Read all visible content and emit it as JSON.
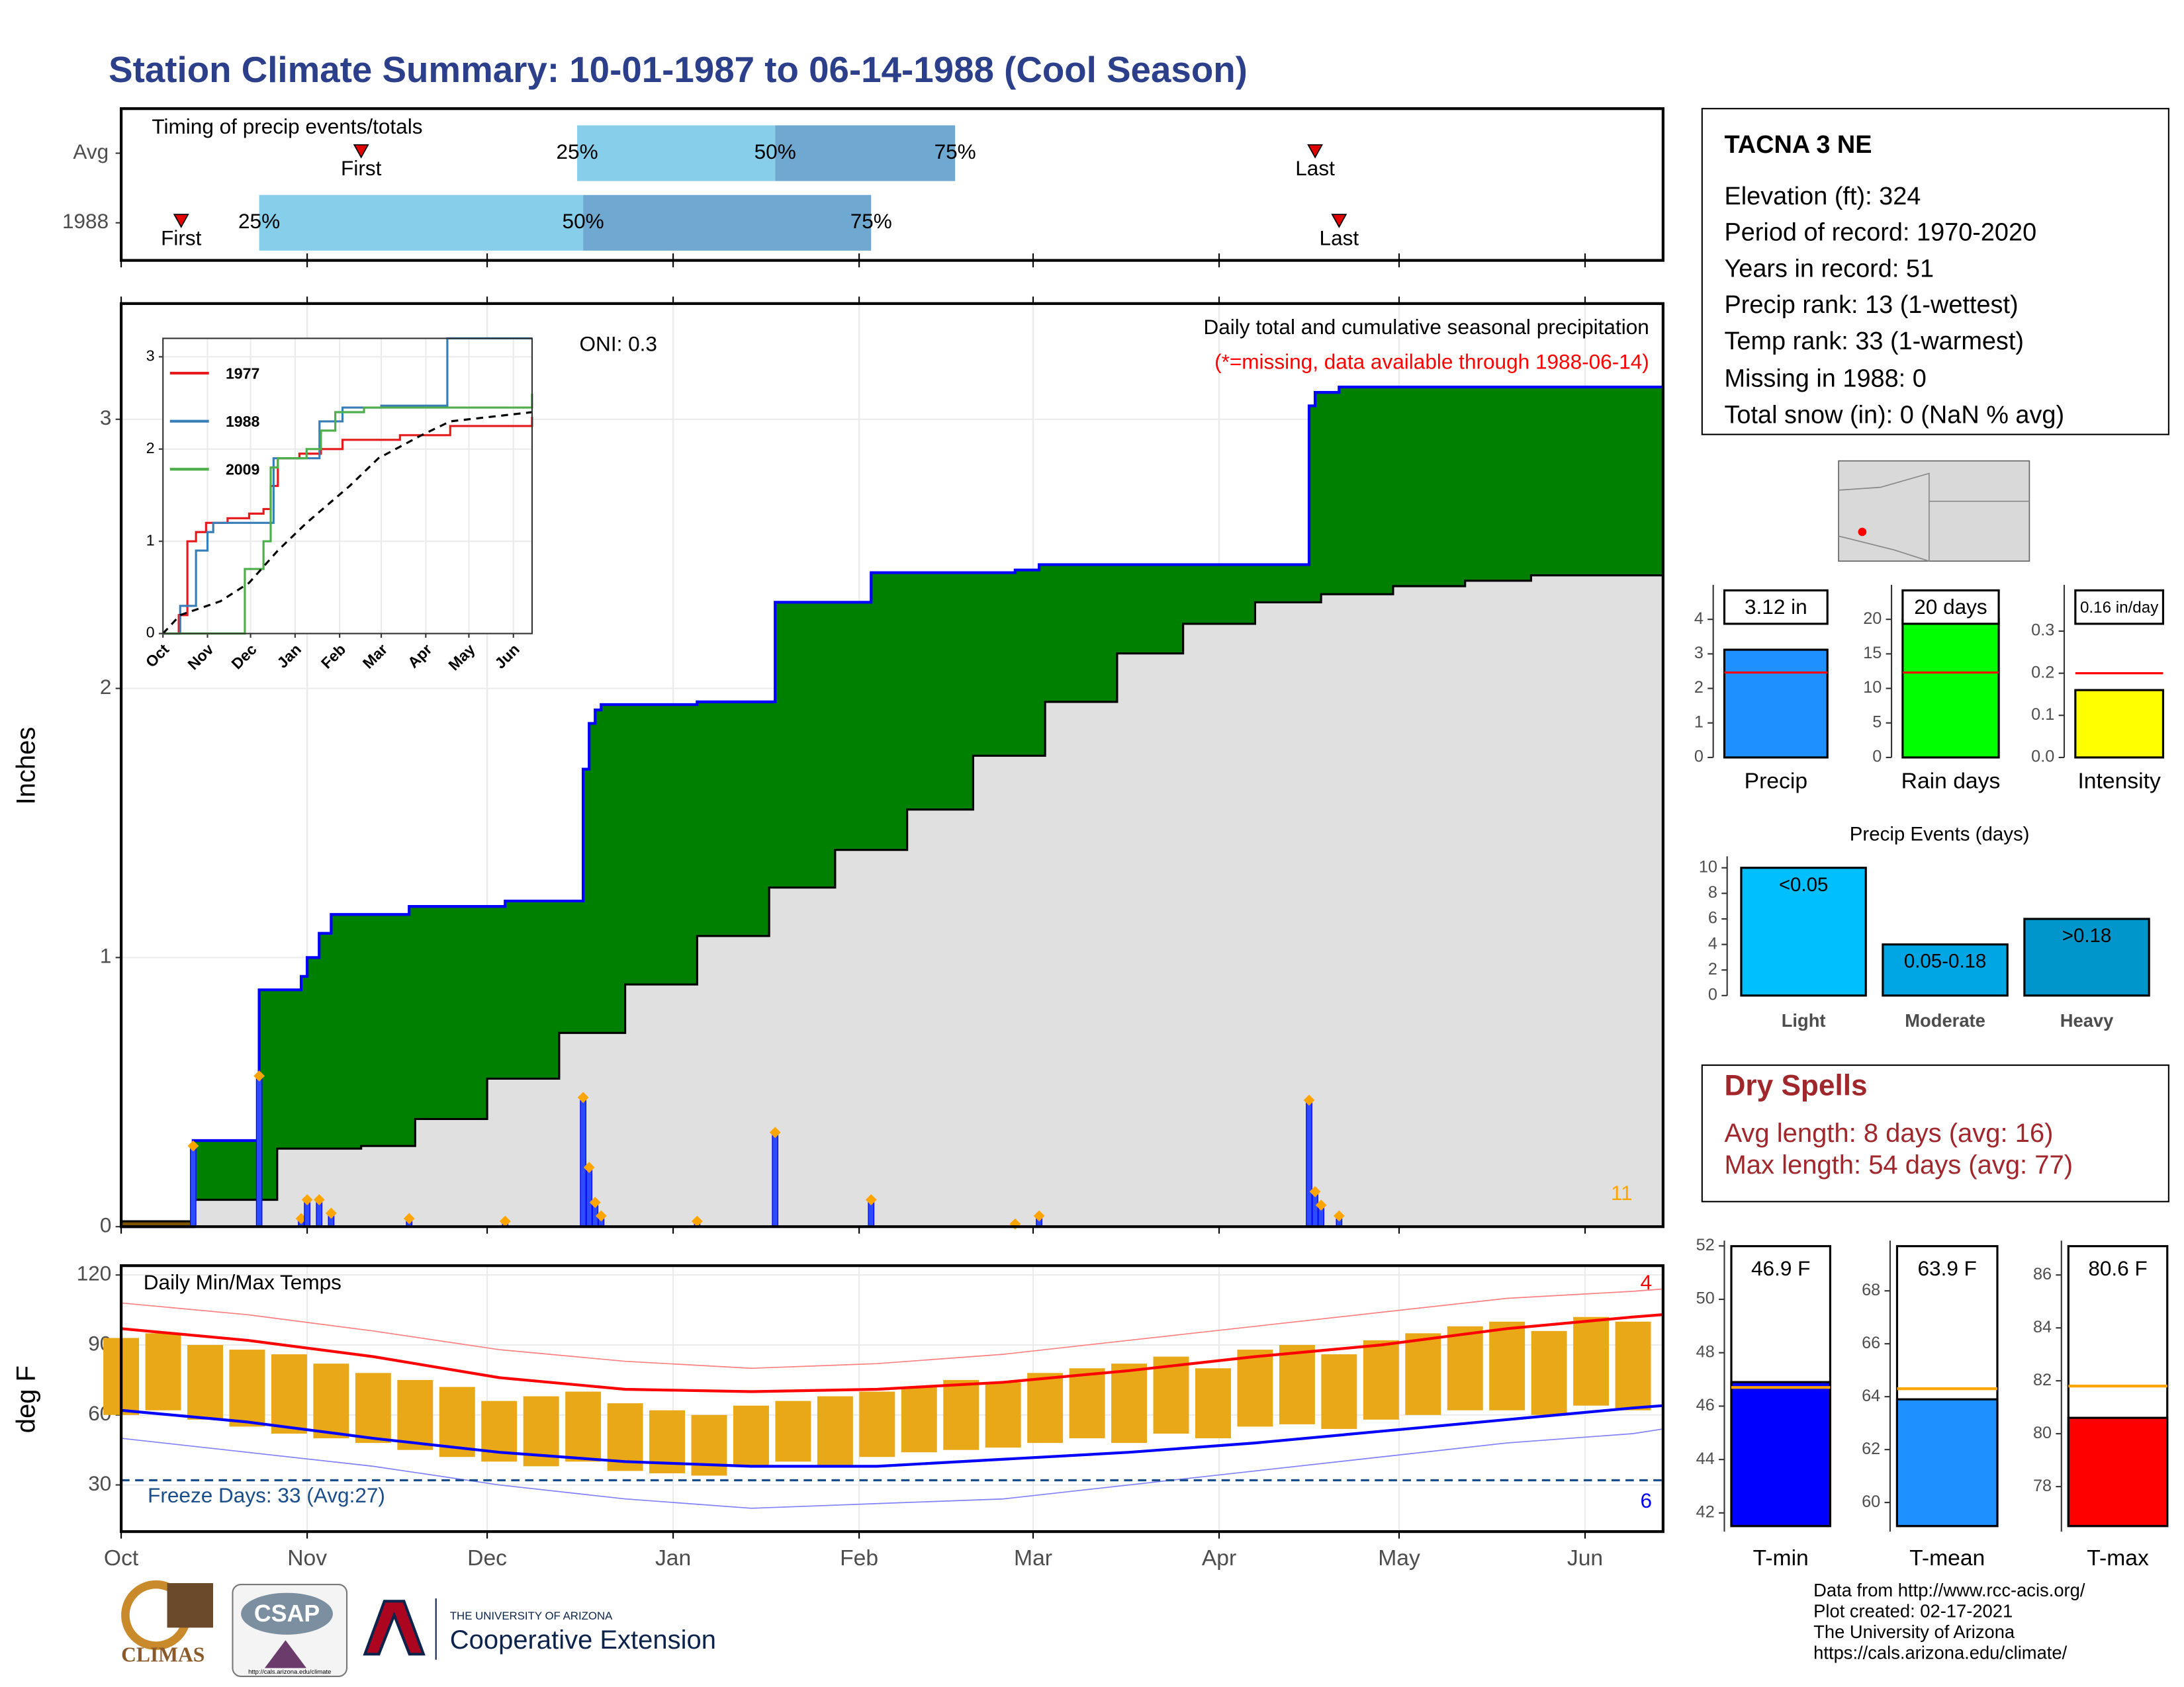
{
  "title": "Station Climate Summary: 10-01-1987 to 06-14-1988 (Cool Season)",
  "info": {
    "station": "TACNA 3 NE",
    "lines": [
      "Elevation (ft): 324",
      "Period of record: 1970-2020",
      "Years in record: 51",
      "Precip rank: 13 (1-wettest)",
      "Temp rank: 33 (1-warmest)",
      "Missing in 1988: 0",
      "Total snow (in): 0 (NaN % avg)"
    ]
  },
  "dry_spells": {
    "title": "Dry Spells",
    "lines": [
      "Avg length: 8 days (avg: 16)",
      "Max length: 54 days (avg: 77)"
    ]
  },
  "footer": {
    "lines": [
      "Data from http://www.rcc-acis.org/",
      "Plot created: 02-17-2021",
      "The University of Arizona",
      "https://cals.arizona.edu/climate/"
    ]
  },
  "logos": {
    "climas": "CLIMAS",
    "csap": "CSAP",
    "csap_url": "http://cals.arizona.edu/climate",
    "university": "THE UNIVERSITY OF ARIZONA",
    "extension": "Cooperative Extension"
  },
  "chart_data": [
    {
      "type": "timeline",
      "title": "Timing of precip events/totals",
      "xlim": [
        0,
        257
      ],
      "colors": [
        "#87ceeb",
        "#6fa8d0"
      ],
      "quantile_labels": [
        "25%",
        "50%",
        "75%"
      ],
      "rows": [
        {
          "name": "Avg",
          "first": 40,
          "first_label": "First",
          "q25": 76,
          "q50": 109,
          "q75": 139,
          "last": 199,
          "last_label": "Last"
        },
        {
          "name": "1988",
          "first": 10,
          "first_label": "First",
          "q25": 23,
          "q50": 77,
          "q75": 125,
          "last": 203,
          "last_label": "Last"
        }
      ]
    },
    {
      "type": "cumulative",
      "title": "Daily total and cumulative seasonal precipitation",
      "subtitle": "(*=missing, data available through 1988-06-14)",
      "annotation": "ONI: 0.3",
      "event_count": 11,
      "ylabel": "Inches",
      "xlim": [
        0,
        257
      ],
      "ylim": [
        0,
        3.43
      ],
      "yticks": [
        0,
        1,
        2,
        3
      ],
      "grid": true,
      "colors": {
        "line": "#0000ff",
        "above": "#008000",
        "below": "#7f5200",
        "average_fill": "#e0e0e0",
        "average_line": "#000000",
        "marker": "#ffa500"
      },
      "cumulative": {
        "x": [
          0,
          12,
          23,
          30,
          31,
          33,
          35,
          48,
          64,
          77,
          78,
          79,
          80,
          96,
          109,
          125,
          149,
          153,
          198,
          199,
          203
        ],
        "values": [
          0,
          0.32,
          0.88,
          0.93,
          1.0,
          1.09,
          1.16,
          1.19,
          1.21,
          1.7,
          1.87,
          1.92,
          1.94,
          1.95,
          2.32,
          2.43,
          2.44,
          2.46,
          3.05,
          3.1,
          3.12
        ]
      },
      "average": {
        "x": [
          0,
          12,
          26,
          40,
          49,
          61,
          73,
          84,
          96,
          108,
          119,
          131,
          142,
          154,
          166,
          177,
          189,
          200,
          212,
          224,
          235,
          257
        ],
        "values": [
          0.02,
          0.1,
          0.29,
          0.3,
          0.4,
          0.55,
          0.72,
          0.9,
          1.08,
          1.26,
          1.4,
          1.55,
          1.75,
          1.95,
          2.13,
          2.24,
          2.32,
          2.35,
          2.38,
          2.4,
          2.42,
          2.44
        ]
      },
      "daily": {
        "x": [
          12,
          23,
          30,
          31,
          33,
          35,
          48,
          64,
          77,
          78,
          79,
          80,
          96,
          109,
          125,
          149,
          153,
          198,
          199,
          200,
          203
        ],
        "values": [
          0.3,
          0.56,
          0.03,
          0.1,
          0.1,
          0.05,
          0.03,
          0.02,
          0.48,
          0.22,
          0.09,
          0.04,
          0.02,
          0.35,
          0.1,
          0.01,
          0.04,
          0.47,
          0.13,
          0.08,
          0.04
        ]
      }
    },
    {
      "type": "line",
      "xlim": [
        0,
        257
      ],
      "ylim": [
        0,
        3.2
      ],
      "yticks": [
        0,
        1,
        2,
        3
      ],
      "xticks": [
        {
          "value": 0,
          "label": "Oct"
        },
        {
          "value": 31,
          "label": "Nov"
        },
        {
          "value": 61,
          "label": "Dec"
        },
        {
          "value": 92,
          "label": "Jan"
        },
        {
          "value": 123,
          "label": "Feb"
        },
        {
          "value": 152,
          "label": "Mar"
        },
        {
          "value": 183,
          "label": "Apr"
        },
        {
          "value": 213,
          "label": "May"
        },
        {
          "value": 244,
          "label": "Jun"
        }
      ],
      "series": [
        {
          "name": "1977",
          "color": "#e41a1c",
          "x": [
            0,
            11,
            17,
            23,
            30,
            45,
            60,
            70,
            75,
            80,
            95,
            110,
            125,
            165,
            200,
            257
          ],
          "values": [
            0,
            0.2,
            1.0,
            1.1,
            1.2,
            1.25,
            1.3,
            1.35,
            1.6,
            1.9,
            1.95,
            2.0,
            2.1,
            2.15,
            2.25,
            2.35
          ]
        },
        {
          "name": "1988",
          "color": "#377eb8",
          "x": [
            0,
            12,
            23,
            31,
            35,
            77,
            109,
            125,
            152,
            198,
            257
          ],
          "values": [
            0,
            0.3,
            0.9,
            1.1,
            1.2,
            1.9,
            2.3,
            2.45,
            2.47,
            3.2,
            3.2
          ]
        },
        {
          "name": "2009",
          "color": "#4daf4a",
          "x": [
            0,
            57,
            70,
            75,
            80,
            100,
            110,
            120,
            140,
            257
          ],
          "values": [
            0,
            0.7,
            1.0,
            1.8,
            1.9,
            2.0,
            2.2,
            2.4,
            2.45,
            2.6
          ]
        },
        {
          "color": "#000000",
          "dash": true,
          "x": [
            0,
            12,
            40,
            60,
            80,
            100,
            130,
            150,
            180,
            200,
            257
          ],
          "values": [
            0,
            0.2,
            0.35,
            0.55,
            0.9,
            1.2,
            1.6,
            1.9,
            2.15,
            2.3,
            2.4
          ]
        }
      ]
    },
    {
      "type": "temperature",
      "title": "Daily Min/Max Temps",
      "ylabel": "deg F",
      "xlim": [
        0,
        257
      ],
      "ylim": [
        10,
        124
      ],
      "yticks": [
        30,
        60,
        90,
        120
      ],
      "grid": true,
      "color": "#e8a817",
      "xticks": [
        {
          "value": 0,
          "label": "Oct"
        },
        {
          "value": 31,
          "label": "Nov"
        },
        {
          "value": 61,
          "label": "Dec"
        },
        {
          "value": 92,
          "label": "Jan"
        },
        {
          "value": 123,
          "label": "Feb"
        },
        {
          "value": 152,
          "label": "Mar"
        },
        {
          "value": 183,
          "label": "Apr"
        },
        {
          "value": 213,
          "label": "May"
        },
        {
          "value": 244,
          "label": "Jun"
        }
      ],
      "daily": {
        "x": [
          0,
          7,
          14,
          21,
          28,
          35,
          42,
          49,
          56,
          63,
          70,
          77,
          84,
          91,
          98,
          105,
          112,
          119,
          126,
          133,
          140,
          147,
          154,
          161,
          168,
          175,
          182,
          189,
          196,
          203,
          210,
          217,
          224,
          231,
          238,
          245,
          252
        ],
        "max": [
          93,
          95,
          90,
          88,
          86,
          82,
          78,
          75,
          72,
          66,
          68,
          70,
          65,
          62,
          60,
          64,
          66,
          68,
          70,
          72,
          75,
          74,
          78,
          80,
          82,
          85,
          80,
          88,
          90,
          86,
          92,
          95,
          98,
          100,
          96,
          102,
          100
        ],
        "min": [
          60,
          62,
          58,
          55,
          52,
          50,
          48,
          45,
          42,
          40,
          38,
          40,
          36,
          35,
          34,
          38,
          40,
          38,
          42,
          44,
          45,
          46,
          48,
          50,
          48,
          52,
          50,
          55,
          56,
          54,
          58,
          60,
          62,
          62,
          60,
          64,
          62
        ]
      },
      "normals": {
        "x": [
          0,
          21,
          42,
          63,
          84,
          105,
          126,
          147,
          168,
          189,
          210,
          231,
          252,
          257
        ],
        "max": [
          97,
          92,
          85,
          76,
          71,
          70,
          71,
          74,
          79,
          85,
          90,
          97,
          102,
          103
        ],
        "min": [
          62,
          57,
          50,
          44,
          40,
          38,
          38,
          41,
          44,
          48,
          53,
          58,
          63,
          64
        ],
        "record_high": [
          108,
          103,
          96,
          88,
          83,
          80,
          82,
          86,
          92,
          98,
          104,
          110,
          113,
          114
        ],
        "record_low": [
          50,
          44,
          38,
          30,
          24,
          20,
          22,
          24,
          30,
          36,
          42,
          48,
          52,
          54
        ]
      },
      "freeze": {
        "value": 32,
        "label": "Freeze Days: 33 (Avg:27)"
      },
      "record_high_count": 4,
      "record_low_count": 6
    },
    {
      "type": "summary",
      "category": "Precip",
      "values": [
        3.12
      ],
      "value_labels": [
        "3.12 in"
      ],
      "average": 2.46,
      "color": "#1e90ff",
      "ylim": [
        0,
        5
      ],
      "yticks": [
        0,
        1,
        2,
        3,
        4
      ]
    },
    {
      "type": "summary",
      "category": "Rain days",
      "values": [
        20
      ],
      "value_labels": [
        "20 days"
      ],
      "average": 12.3,
      "color": "#00ff00",
      "ylim": [
        0,
        25
      ],
      "yticks": [
        0,
        5,
        10,
        15,
        20
      ]
    },
    {
      "type": "summary",
      "category": "Intensity",
      "values": [
        0.16
      ],
      "value_labels": [
        "0.16 in/day"
      ],
      "average": 0.2,
      "color": "#ffff00",
      "ylim": [
        0,
        0.41
      ],
      "yticks": [
        {
          "value": 0,
          "label": "0.0"
        },
        0.1,
        0.2,
        0.3
      ]
    },
    {
      "type": "bar",
      "title": "Precip Events (days)",
      "categories": [
        "Light",
        "Moderate",
        "Heavy"
      ],
      "values": [
        10,
        4,
        6
      ],
      "annotations": [
        "<0.05",
        "0.05-0.18",
        ">0.18"
      ],
      "colors": [
        "#00bfff",
        "#00a5e3",
        "#0096cc"
      ],
      "ylim": [
        0,
        10.9
      ],
      "yticks": [
        0,
        2,
        4,
        6,
        8,
        10
      ]
    },
    {
      "type": "gauge",
      "category": "T-min",
      "values": [
        46.9
      ],
      "value_labels": [
        "46.9 F"
      ],
      "average": 46.7,
      "color": "#0000ff",
      "ylim": [
        41.3,
        52.2
      ],
      "yticks": [
        42,
        44,
        46,
        48,
        50,
        52
      ]
    },
    {
      "type": "gauge",
      "category": "T-mean",
      "values": [
        63.9
      ],
      "value_labels": [
        "63.9 F"
      ],
      "average": 64.3,
      "color": "#1e90ff",
      "ylim": [
        58.9,
        69.9
      ],
      "yticks": [
        60,
        62,
        64,
        66,
        68
      ]
    },
    {
      "type": "gauge",
      "category": "T-max",
      "values": [
        80.6
      ],
      "value_labels": [
        "80.6 F"
      ],
      "average": 81.8,
      "color": "#ff0000",
      "ylim": [
        76.3,
        87.3
      ],
      "yticks": [
        78,
        80,
        82,
        84,
        86
      ]
    }
  ]
}
